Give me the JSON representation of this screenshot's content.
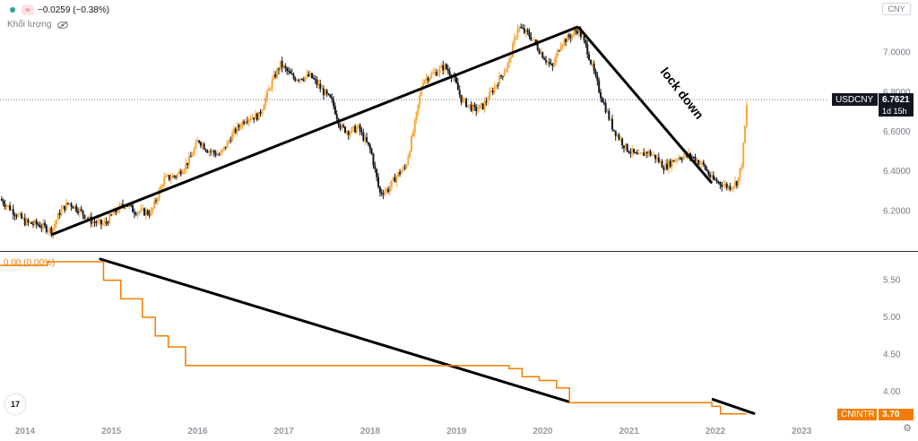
{
  "header": {
    "change_text": "−0.0259 (−0.38%)",
    "volume_label": "Khối lượng",
    "currency_button": "CNY"
  },
  "main_pane": {
    "price_tag_symbol": "USDCNY",
    "price_tag_value": "6.7621",
    "price_tag_countdown": "1d 15h",
    "annotation": "lock down"
  },
  "sub_pane": {
    "legend_text": "0.00 (0.00%)",
    "tag_symbol": "CNINTR",
    "tag_value": "3.70"
  },
  "logo": "17",
  "colors": {
    "up_candle": "#f7a737",
    "down_candle": "#131722",
    "rate_line": "#f57c00",
    "trendline": "#000000",
    "tag_bg": "#131722",
    "rate_tag_bg": "#f57c00"
  },
  "icons": [
    "status-dot-icon",
    "wave-icon",
    "eye-slash-icon",
    "gear-icon",
    "tradingview-logo-icon"
  ],
  "chart_data": [
    {
      "type": "candlestick",
      "series_name": "USDCNY",
      "y_ticks": [
        6.2,
        6.4,
        6.6,
        6.8,
        7.0
      ],
      "y_tick_labels": [
        "6.2000",
        "6.4000",
        "6.6000",
        "6.8000",
        "7.0000"
      ],
      "ylim": [
        6.02,
        7.22
      ],
      "x_ticks": [
        "2014",
        "2015",
        "2016",
        "2017",
        "2018",
        "2019",
        "2020",
        "2021",
        "2022",
        "2023"
      ],
      "xlim": [
        2013.7,
        2023.3
      ],
      "last_value": 6.7621,
      "close_path": [
        [
          2013.7,
          6.26
        ],
        [
          2013.85,
          6.2
        ],
        [
          2014.0,
          6.14
        ],
        [
          2014.15,
          6.13
        ],
        [
          2014.3,
          6.1
        ],
        [
          2014.4,
          6.2
        ],
        [
          2014.5,
          6.24
        ],
        [
          2014.6,
          6.21
        ],
        [
          2014.75,
          6.15
        ],
        [
          2014.9,
          6.13
        ],
        [
          2015.05,
          6.2
        ],
        [
          2015.15,
          6.24
        ],
        [
          2015.25,
          6.2
        ],
        [
          2015.45,
          6.19
        ],
        [
          2015.6,
          6.36
        ],
        [
          2015.75,
          6.38
        ],
        [
          2015.9,
          6.46
        ],
        [
          2016.0,
          6.56
        ],
        [
          2016.1,
          6.51
        ],
        [
          2016.25,
          6.48
        ],
        [
          2016.4,
          6.59
        ],
        [
          2016.55,
          6.67
        ],
        [
          2016.7,
          6.68
        ],
        [
          2016.85,
          6.85
        ],
        [
          2016.95,
          6.94
        ],
        [
          2017.1,
          6.87
        ],
        [
          2017.3,
          6.88
        ],
        [
          2017.45,
          6.8
        ],
        [
          2017.55,
          6.75
        ],
        [
          2017.65,
          6.62
        ],
        [
          2017.75,
          6.6
        ],
        [
          2017.85,
          6.62
        ],
        [
          2018.0,
          6.5
        ],
        [
          2018.1,
          6.29
        ],
        [
          2018.2,
          6.31
        ],
        [
          2018.3,
          6.38
        ],
        [
          2018.4,
          6.42
        ],
        [
          2018.5,
          6.62
        ],
        [
          2018.6,
          6.86
        ],
        [
          2018.75,
          6.9
        ],
        [
          2018.85,
          6.93
        ],
        [
          2018.95,
          6.88
        ],
        [
          2019.05,
          6.76
        ],
        [
          2019.2,
          6.71
        ],
        [
          2019.3,
          6.73
        ],
        [
          2019.45,
          6.84
        ],
        [
          2019.6,
          6.95
        ],
        [
          2019.7,
          7.13
        ],
        [
          2019.85,
          7.08
        ],
        [
          2020.0,
          6.98
        ],
        [
          2020.1,
          6.92
        ],
        [
          2020.2,
          7.05
        ],
        [
          2020.3,
          7.08
        ],
        [
          2020.4,
          7.12
        ],
        [
          2020.5,
          7.02
        ],
        [
          2020.65,
          6.8
        ],
        [
          2020.8,
          6.62
        ],
        [
          2020.95,
          6.52
        ],
        [
          2021.1,
          6.47
        ],
        [
          2021.2,
          6.5
        ],
        [
          2021.3,
          6.47
        ],
        [
          2021.4,
          6.42
        ],
        [
          2021.55,
          6.47
        ],
        [
          2021.7,
          6.48
        ],
        [
          2021.85,
          6.43
        ],
        [
          2021.95,
          6.36
        ],
        [
          2022.05,
          6.34
        ],
        [
          2022.15,
          6.32
        ],
        [
          2022.25,
          6.35
        ],
        [
          2022.3,
          6.45
        ],
        [
          2022.33,
          6.6
        ],
        [
          2022.36,
          6.76
        ]
      ]
    },
    {
      "type": "line",
      "series_name": "CNINTR",
      "y_ticks": [
        4.0,
        4.5,
        5.0,
        5.5
      ],
      "y_tick_labels": [
        "4.00",
        "4.50",
        "5.00",
        "5.50"
      ],
      "ylim": [
        3.6,
        5.87
      ],
      "last_value": 3.7,
      "steps": [
        [
          2013.7,
          5.7
        ],
        [
          2014.25,
          5.75
        ],
        [
          2014.85,
          5.75
        ],
        [
          2014.9,
          5.5
        ],
        [
          2015.1,
          5.25
        ],
        [
          2015.35,
          5.0
        ],
        [
          2015.5,
          4.75
        ],
        [
          2015.65,
          4.6
        ],
        [
          2015.85,
          4.35
        ],
        [
          2018.3,
          4.35
        ],
        [
          2019.45,
          4.35
        ],
        [
          2019.6,
          4.31
        ],
        [
          2019.75,
          4.2
        ],
        [
          2019.95,
          4.15
        ],
        [
          2020.15,
          4.05
        ],
        [
          2020.3,
          3.85
        ],
        [
          2021.85,
          3.85
        ],
        [
          2021.95,
          3.8
        ],
        [
          2022.05,
          3.7
        ],
        [
          2022.35,
          3.7
        ]
      ]
    }
  ]
}
